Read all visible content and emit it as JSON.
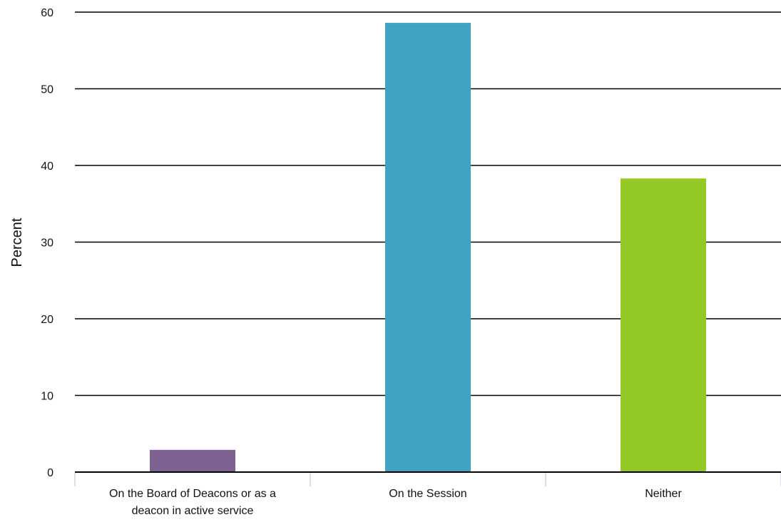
{
  "chart_data": {
    "type": "bar",
    "title": "",
    "xlabel": "",
    "ylabel": "Percent",
    "ylim": [
      0,
      60
    ],
    "yticks": [
      0,
      10,
      20,
      30,
      40,
      50,
      60
    ],
    "grid": true,
    "legend": "none",
    "categories": [
      [
        "On the Board of Deacons or as a",
        "deacon in active service"
      ],
      [
        "On the Session"
      ],
      [
        "Neither"
      ]
    ],
    "values": [
      2.9,
      58.6,
      38.3
    ],
    "colors": [
      "#7d6190",
      "#41a3c2",
      "#94c826"
    ]
  }
}
